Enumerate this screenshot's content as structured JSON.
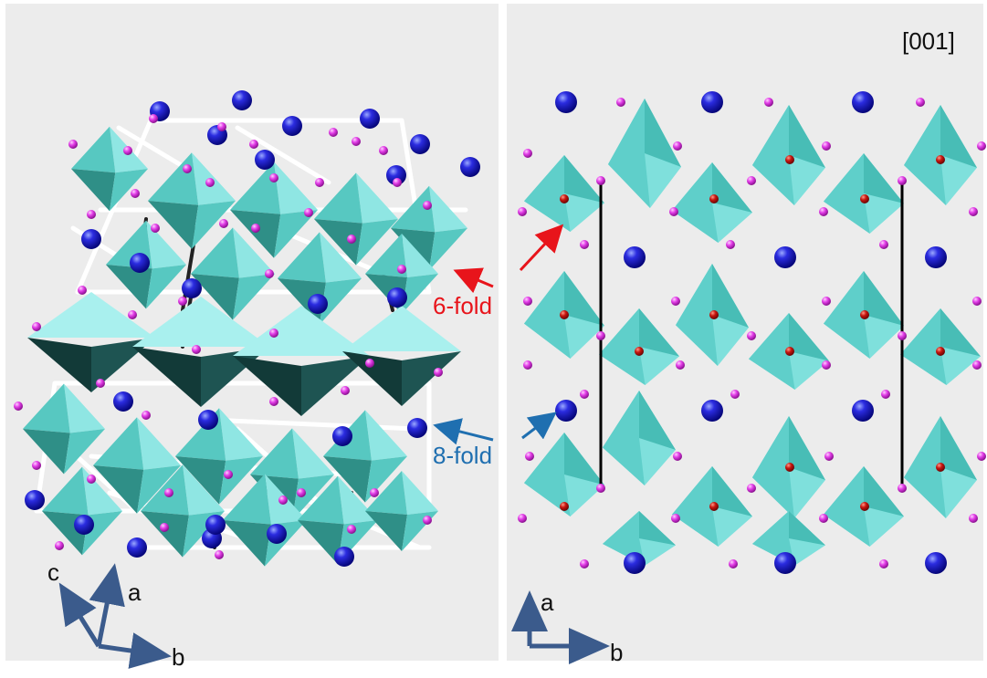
{
  "projection_label": "[001]",
  "annotations": {
    "six_fold": {
      "text": "6-fold",
      "color": "#e8141b"
    },
    "eight_fold": {
      "text": "8-fold",
      "color": "#1f6fb0"
    }
  },
  "left_axes": {
    "c": "c",
    "a": "a",
    "b": "b"
  },
  "right_axes": {
    "a": "a",
    "b": "b"
  },
  "colors": {
    "panel_bg": "#ececec",
    "polyhedron_light": "#8ee3e0",
    "polyhedron_dark": "#2f9a90",
    "oxygen": "#e040e6",
    "metal_6fold": "#c01414",
    "metal_8fold": "#1a1ab8",
    "axis_arrow": "#3b5b8c"
  }
}
